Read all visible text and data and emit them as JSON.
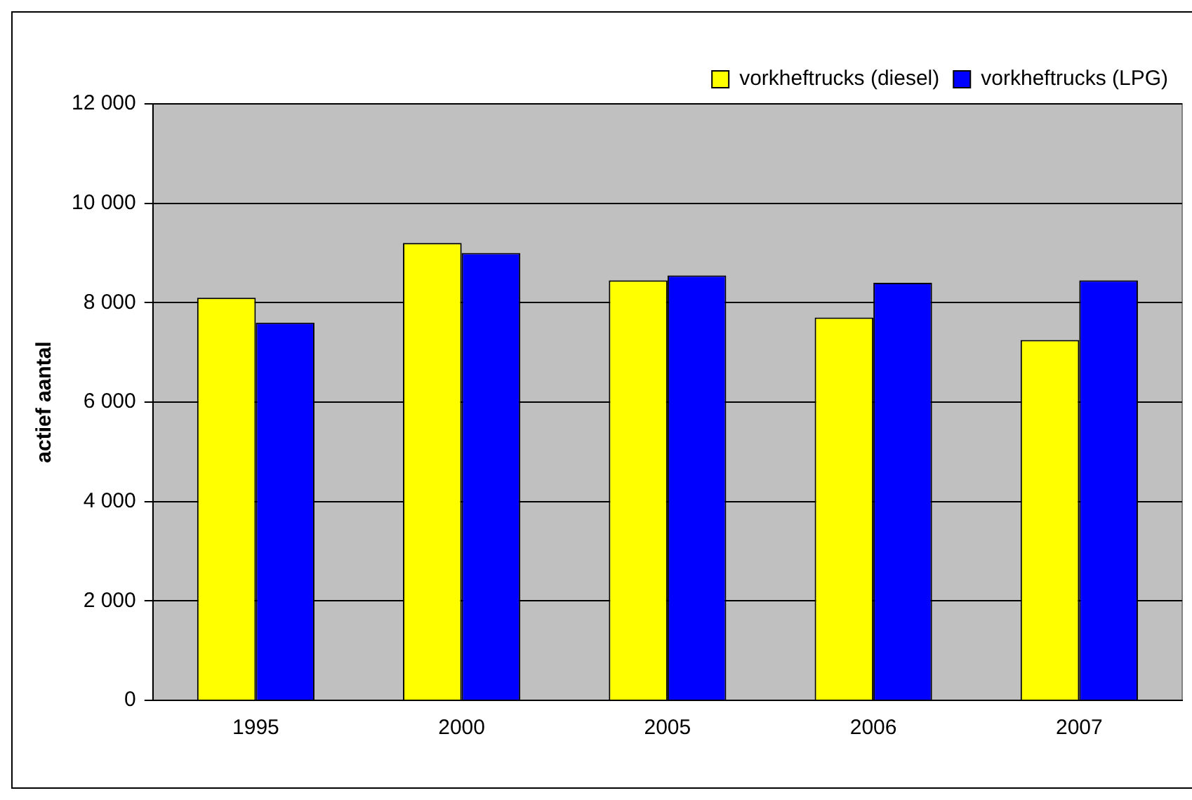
{
  "chart_data": {
    "type": "bar",
    "ylabel": "actief aantal",
    "categories": [
      "1995",
      "2000",
      "2005",
      "2006",
      "2007"
    ],
    "series": [
      {
        "name": "vorkheftrucks (diesel)",
        "color": "#ffff00",
        "values": [
          8100,
          9200,
          8450,
          7700,
          7250
        ]
      },
      {
        "name": "vorkheftrucks (LPG)",
        "color": "#0000ff",
        "values": [
          7600,
          9000,
          8550,
          8400,
          8450
        ]
      }
    ],
    "ylim": [
      0,
      12000
    ],
    "yticks": [
      {
        "value": 0,
        "label": "0"
      },
      {
        "value": 2000,
        "label": "2 000"
      },
      {
        "value": 4000,
        "label": "4 000"
      },
      {
        "value": 6000,
        "label": "6 000"
      },
      {
        "value": 8000,
        "label": "8 000"
      },
      {
        "value": 10000,
        "label": "10 000"
      },
      {
        "value": 12000,
        "label": "12 000"
      }
    ],
    "grid": "y",
    "legend": "top right"
  }
}
